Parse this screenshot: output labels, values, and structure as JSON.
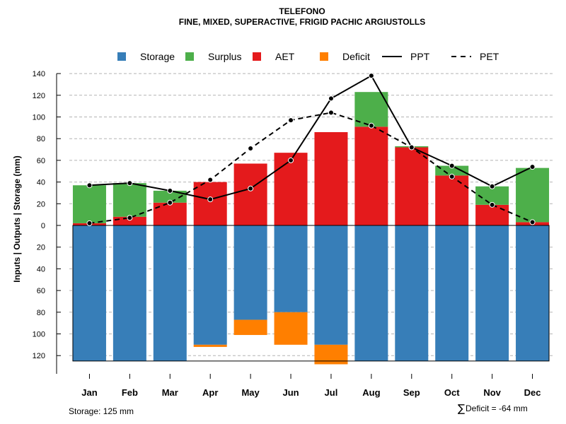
{
  "chart_data": {
    "type": "bar",
    "title": "TELEFONO",
    "subtitle": "FINE, MIXED, SUPERACTIVE, FRIGID PACHIC ARGIUSTOLLS",
    "ylabel": "Inputs | Outputs | Storage    (mm)",
    "categories": [
      "Jan",
      "Feb",
      "Mar",
      "Apr",
      "May",
      "Jun",
      "Jul",
      "Aug",
      "Sep",
      "Oct",
      "Nov",
      "Dec"
    ],
    "y_ticks_upper": [
      "0",
      "20",
      "40",
      "60",
      "80",
      "100",
      "120",
      "140"
    ],
    "y_ticks_lower": [
      "20",
      "40",
      "60",
      "80",
      "100",
      "120"
    ],
    "ylim_upper": [
      0,
      140
    ],
    "ylim_lower": [
      0,
      125
    ],
    "grid": true,
    "legend_position": "top",
    "series": [
      {
        "name": "Storage",
        "color": "#377eb8",
        "values": [
          125,
          125,
          125,
          110,
          87,
          80,
          110,
          125,
          125,
          125,
          125,
          125
        ]
      },
      {
        "name": "Surplus",
        "color": "#4daf4a",
        "values": [
          35,
          31,
          11,
          0,
          0,
          0,
          0,
          32,
          1,
          9,
          17,
          50
        ]
      },
      {
        "name": "AET",
        "color": "#e41a1c",
        "values": [
          2,
          8,
          21,
          40,
          57,
          67,
          86,
          91,
          72,
          46,
          19,
          3
        ]
      },
      {
        "name": "Deficit",
        "color": "#ff7f00",
        "values": [
          0,
          0,
          0,
          2,
          14,
          30,
          18,
          0,
          0,
          0,
          0,
          0
        ]
      },
      {
        "name": "PPT",
        "color": "#000000",
        "line": "solid",
        "values": [
          37,
          39,
          32,
          24,
          34,
          60,
          117,
          138,
          72,
          55,
          36,
          54
        ]
      },
      {
        "name": "PET",
        "color": "#000000",
        "line": "dashed",
        "values": [
          2,
          7,
          21,
          42,
          71,
          97,
          104,
          92,
          72,
          45,
          19,
          3
        ]
      }
    ],
    "annotations": {
      "storage": "Storage: 125 mm",
      "deficit": "Deficit = -64 mm",
      "deficit_symbol": "∑"
    }
  }
}
